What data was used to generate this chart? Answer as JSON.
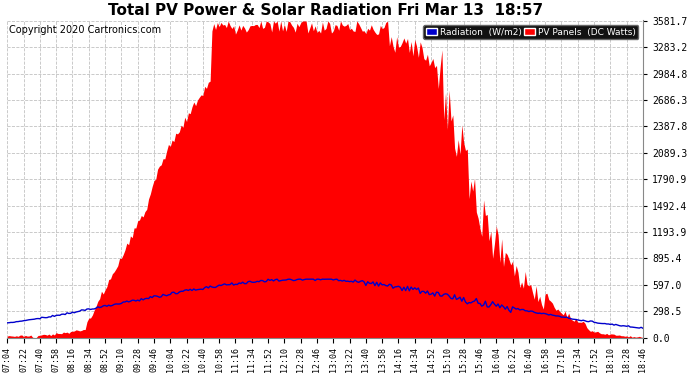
{
  "title": "Total PV Power & Solar Radiation Fri Mar 13  18:57",
  "copyright": "Copyright 2020 Cartronics.com",
  "yticks": [
    0.0,
    298.5,
    597.0,
    895.4,
    1193.9,
    1492.4,
    1790.9,
    2089.3,
    2387.8,
    2686.3,
    2984.8,
    3283.2,
    3581.7
  ],
  "ymax": 3581.7,
  "legend_radiation_label": "Radiation  (W/m2)",
  "legend_pv_label": "PV Panels  (DC Watts)",
  "radiation_color": "#0000cc",
  "pv_fill_color": "#ff0000",
  "background_color": "#ffffff",
  "grid_color": "#bbbbbb",
  "title_fontsize": 11,
  "copyright_fontsize": 7,
  "tick_fontsize": 7,
  "legend_bg_radiation": "#0000cc",
  "legend_bg_pv": "#ff0000",
  "figwidth": 6.9,
  "figheight": 3.75,
  "dpi": 100
}
